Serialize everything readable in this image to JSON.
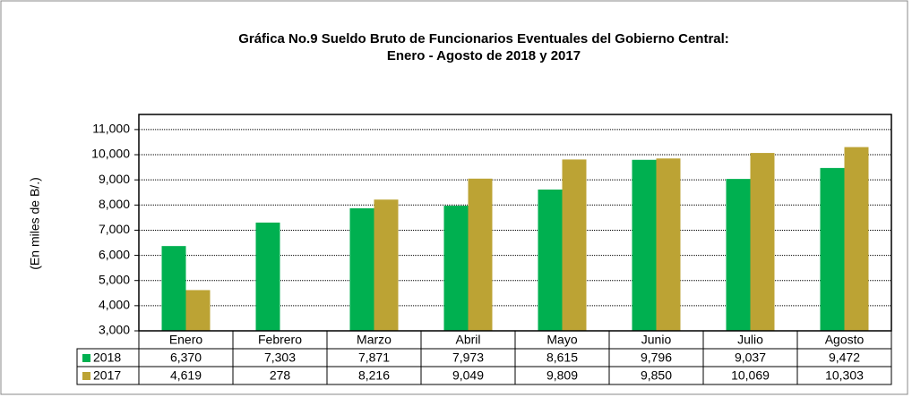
{
  "chart_data": {
    "type": "bar",
    "title": "Gráfica No.9 Sueldo Bruto de Funcionarios Eventuales del  Gobierno Central:",
    "subtitle": "Enero - Agosto de 2018 y 2017",
    "y_label": "(En miles de B/.)",
    "categories": [
      "Enero",
      "Febrero",
      "Marzo",
      "Abril",
      "Mayo",
      "Junio",
      "Julio",
      "Agosto"
    ],
    "series": [
      {
        "name": "2018",
        "color": "#00b050",
        "values": [
          6370,
          7303,
          7871,
          7973,
          8615,
          9796,
          9037,
          9472
        ],
        "value_labels": [
          "6,370",
          "7,303",
          "7,871",
          "7,973",
          "8,615",
          "9,796",
          "9,037",
          "9,472"
        ]
      },
      {
        "name": "2017",
        "color": "#bca334",
        "values": [
          4619,
          278,
          8216,
          9049,
          9809,
          9850,
          10069,
          10303
        ],
        "value_labels": [
          "4,619",
          "278",
          "8,216",
          "9,049",
          "9,809",
          "9,850",
          "10,069",
          "10,303"
        ]
      }
    ],
    "ylim": [
      3000,
      11600
    ],
    "yticks": [
      {
        "value": 3000,
        "label": "3,000"
      },
      {
        "value": 4000,
        "label": "4,000"
      },
      {
        "value": 5000,
        "label": "5,000"
      },
      {
        "value": 6000,
        "label": "6,000"
      },
      {
        "value": 7000,
        "label": "7,000"
      },
      {
        "value": 8000,
        "label": "8,000"
      },
      {
        "value": 9000,
        "label": "9,000"
      },
      {
        "value": 10000,
        "label": "10,000"
      },
      {
        "value": 11000,
        "label": "11,000"
      }
    ],
    "grid": true
  }
}
